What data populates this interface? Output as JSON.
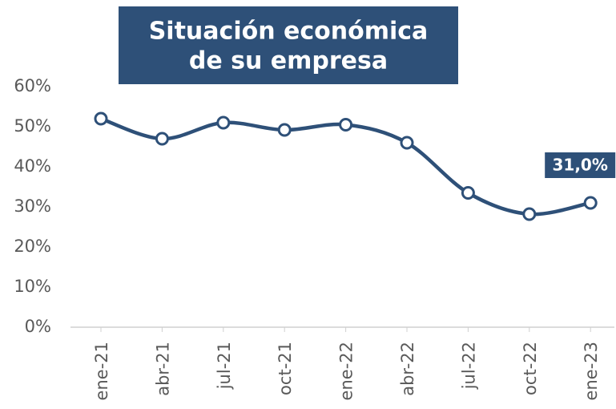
{
  "chart_data": {
    "type": "line",
    "title": [
      "Situación económica",
      "de su empresa"
    ],
    "categories": [
      "ene-21",
      "abr-21",
      "jul-21",
      "oct-21",
      "ene-22",
      "abr-22",
      "jul-22",
      "oct-22",
      "ene-23"
    ],
    "series": [
      {
        "color": "#2e5078",
        "values": [
          52,
          47,
          51,
          49.2,
          50.5,
          46,
          33.5,
          28.2,
          31
        ],
        "value_labels": [
          null,
          null,
          null,
          null,
          null,
          null,
          null,
          null,
          "31,0%"
        ]
      }
    ],
    "ylim": [
      0,
      60
    ],
    "yticks": [
      {
        "value": 0,
        "label": "0%"
      },
      {
        "value": 10,
        "label": "10%"
      },
      {
        "value": 20,
        "label": "20%"
      },
      {
        "value": 30,
        "label": "30%"
      },
      {
        "value": 40,
        "label": "40%"
      },
      {
        "value": 50,
        "label": "50%"
      },
      {
        "value": 60,
        "label": "60%"
      }
    ],
    "grid": false
  }
}
